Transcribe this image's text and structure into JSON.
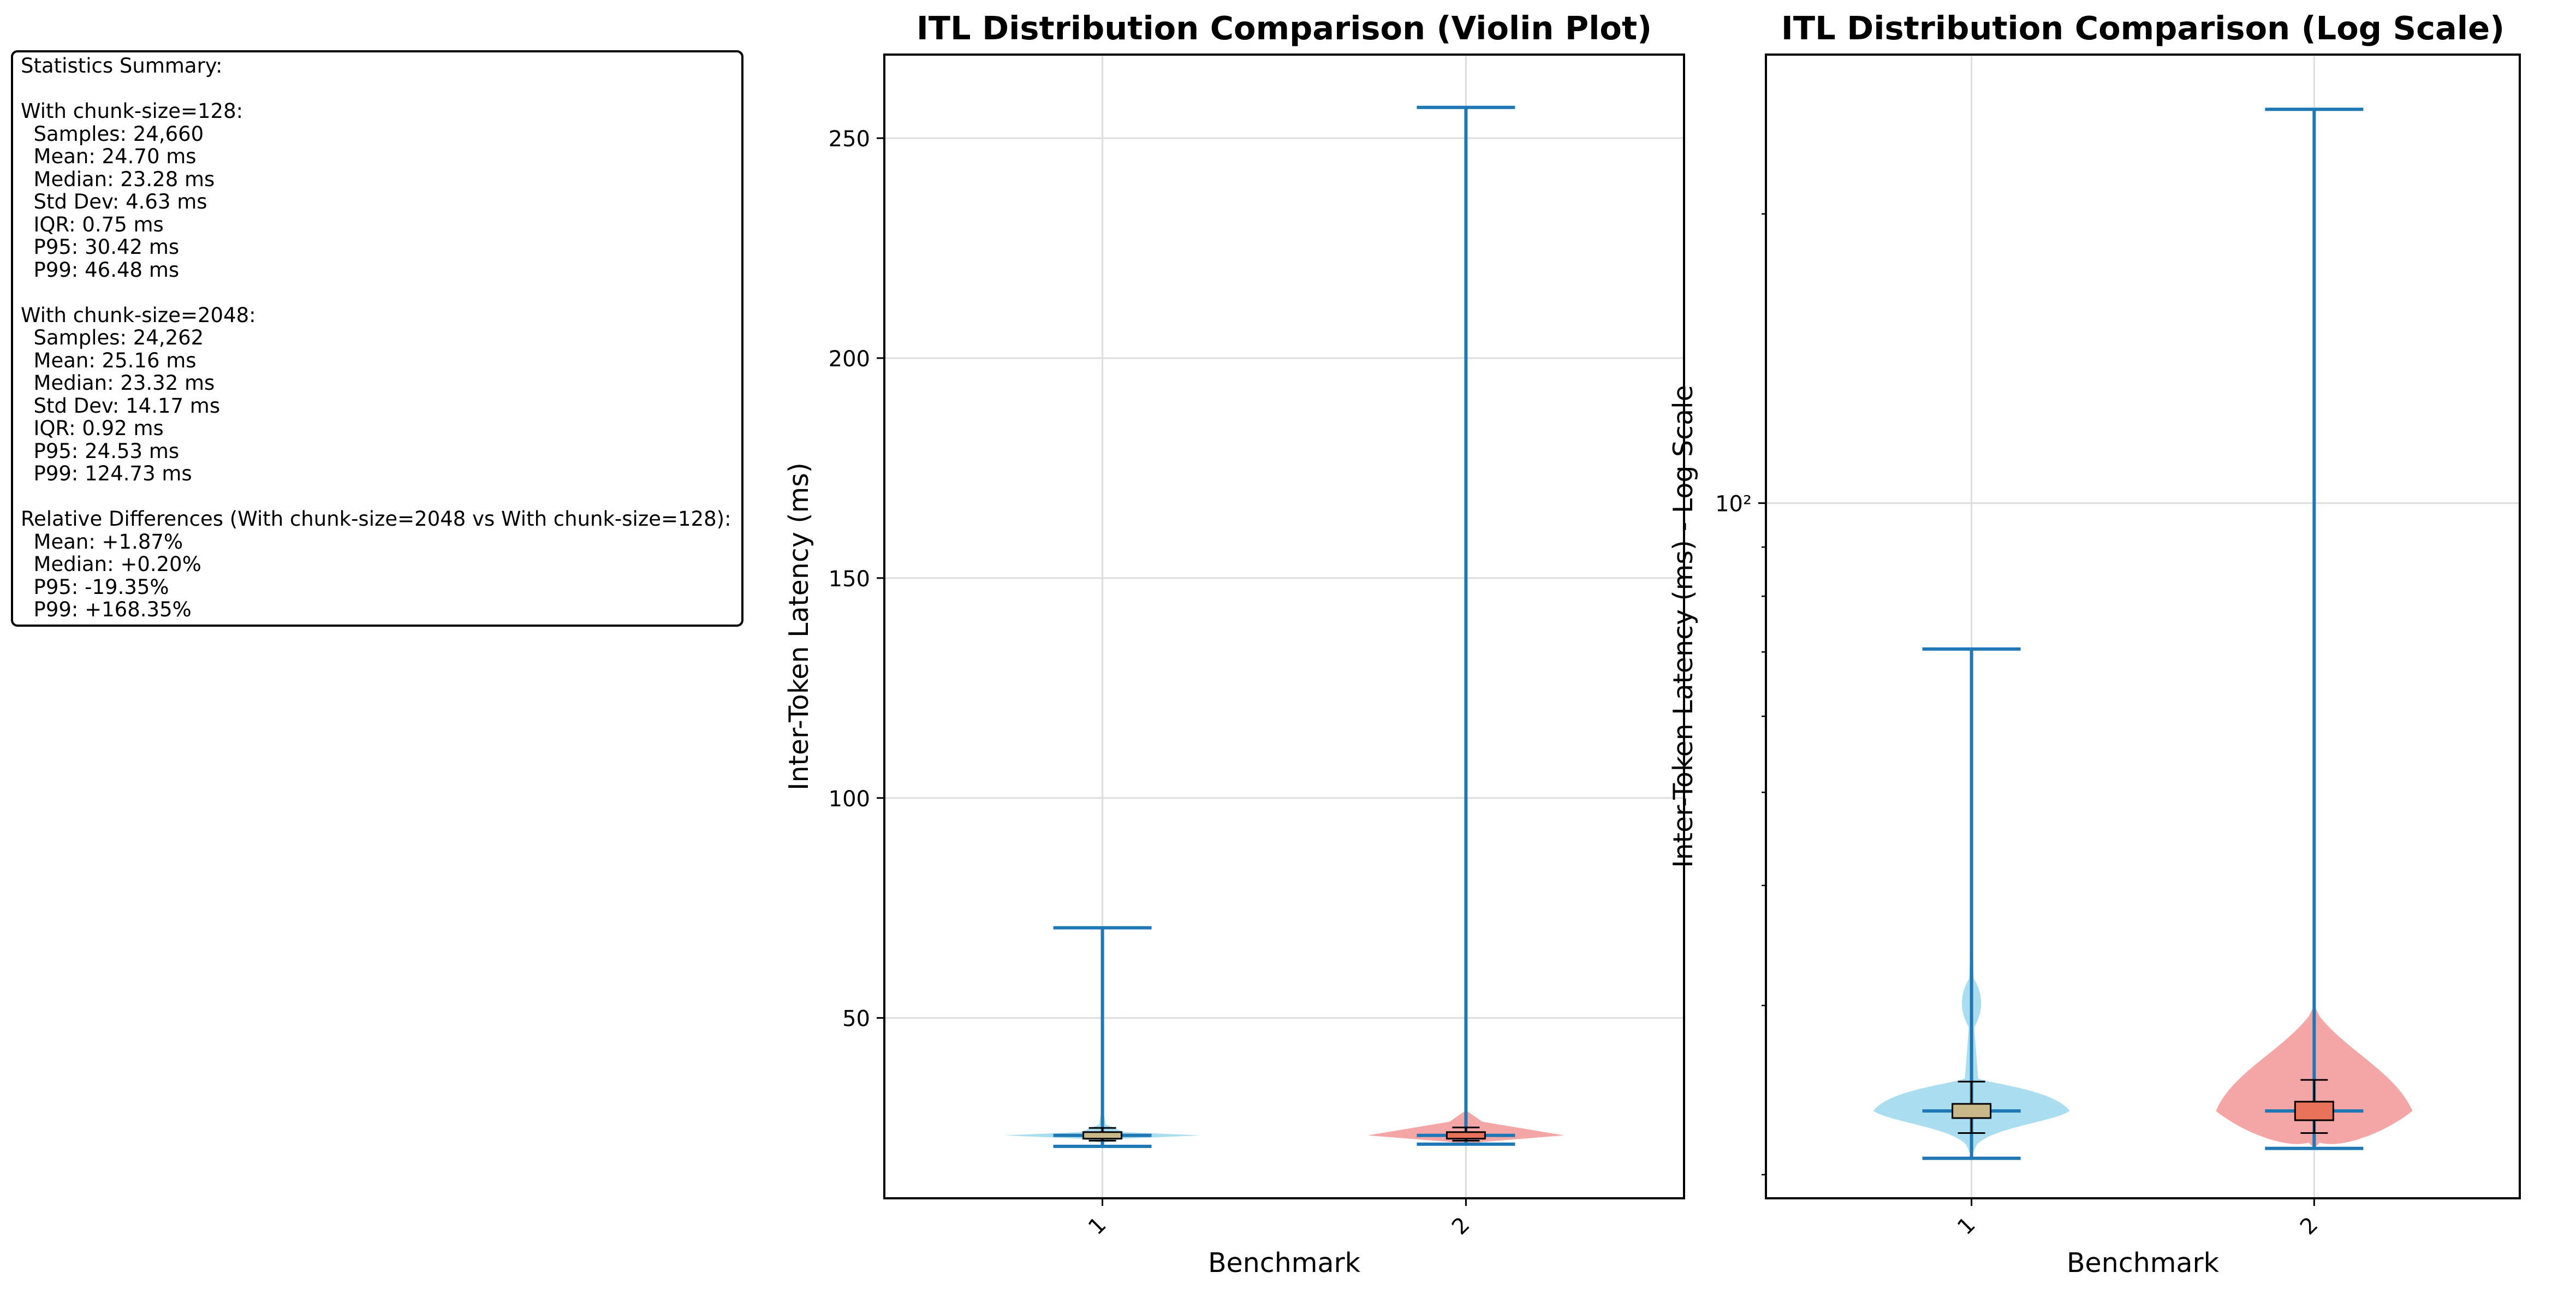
{
  "stats_summary": {
    "lines": [
      "Statistics Summary:",
      "",
      "With chunk-size=128:",
      "  Samples: 24,660",
      "  Mean: 24.70 ms",
      "  Median: 23.28 ms",
      "  Std Dev: 4.63 ms",
      "  IQR: 0.75 ms",
      "  P95: 30.42 ms",
      "  P99: 46.48 ms",
      "",
      "With chunk-size=2048:",
      "  Samples: 24,262",
      "  Mean: 25.16 ms",
      "  Median: 23.32 ms",
      "  Std Dev: 14.17 ms",
      "  IQR: 0.92 ms",
      "  P95: 24.53 ms",
      "  P99: 124.73 ms",
      "",
      "Relative Differences (With chunk-size=2048 vs With chunk-size=128):",
      "  Mean: +1.87%",
      "  Median: +0.20%",
      "  P95: -19.35%",
      "  P99: +168.35%"
    ]
  },
  "colors": {
    "series1_fill": "#87ceeb",
    "series2_fill": "#f08080",
    "whisker": "#1f77b4",
    "grid": "#dddddd"
  },
  "chart_data": [
    {
      "type": "violin",
      "title": "ITL Distribution Comparison (Violin Plot)",
      "xlabel": "Benchmark",
      "ylabel": "Inter-Token Latency (ms)",
      "categories": [
        "1",
        "2"
      ],
      "yscale": "linear",
      "ylim": [
        9,
        269
      ],
      "yticks": [
        50,
        100,
        150,
        200,
        250
      ],
      "ytick_labels": [
        "50",
        "100",
        "150",
        "200",
        "250"
      ],
      "grid": true,
      "series": [
        {
          "min": 20.8,
          "max": 70.5,
          "median": 23.3,
          "mean": 24.7,
          "q1": 23.0,
          "q3": 23.75,
          "box_low": 22.1,
          "box_high": 25.0
        },
        {
          "min": 21.3,
          "max": 257.0,
          "median": 23.3,
          "mean": 25.2,
          "q1": 22.9,
          "q3": 23.8,
          "box_low": 22.1,
          "box_high": 25.1
        }
      ]
    },
    {
      "type": "violin",
      "title": "ITL Distribution Comparison (Log Scale)",
      "xlabel": "Benchmark",
      "ylabel": "Inter-Token Latency (ms) - Log Scale",
      "categories": [
        "1",
        "2"
      ],
      "yscale": "log",
      "ylim": [
        18.9,
        293
      ],
      "yticks": [
        100
      ],
      "ytick_labels": [
        "10²"
      ],
      "grid": true,
      "series": [
        {
          "min": 20.8,
          "max": 70.5,
          "median": 23.3,
          "mean": 24.7,
          "q1": 23.0,
          "q3": 23.75,
          "box_low": 22.1,
          "box_high": 25.0
        },
        {
          "min": 21.3,
          "max": 257.0,
          "median": 23.3,
          "mean": 25.2,
          "q1": 22.9,
          "q3": 23.8,
          "box_low": 22.1,
          "box_high": 25.1
        }
      ]
    }
  ]
}
